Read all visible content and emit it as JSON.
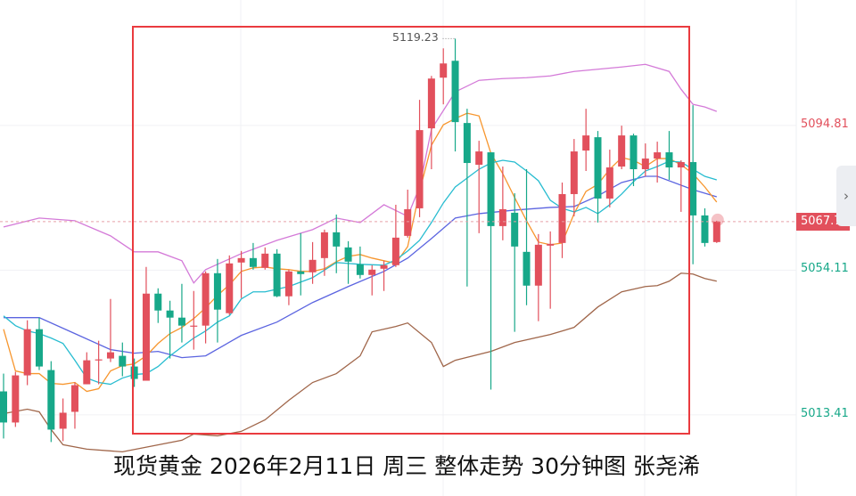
{
  "chart_data": {
    "type": "candlestick",
    "title": "",
    "candle_format": [
      "open",
      "high",
      "low",
      "close"
    ],
    "up_color": "#e2505c",
    "down_color": "#17a889",
    "y_axis_ticks": [
      "5094.81",
      "5054.11",
      "5013.41"
    ],
    "y_axis_tick_values": [
      5094.81,
      5054.11,
      5013.41
    ],
    "y_axis_tick_colors": [
      "up",
      "down",
      "down"
    ],
    "last_price": "5067.75",
    "max_label": "5119.23",
    "grid": true,
    "candles": [
      [
        5020,
        5025,
        5006.75,
        5011.25
      ],
      [
        5011.25,
        5025.5,
        5010,
        5024.5
      ],
      [
        5024.5,
        5040,
        5021.75,
        5037.5
      ],
      [
        5037.5,
        5040.75,
        5026,
        5027
      ],
      [
        5026,
        5028.5,
        5005.75,
        5009.25
      ],
      [
        5009.5,
        5018,
        5006,
        5014
      ],
      [
        5014.25,
        5022.5,
        5009.5,
        5021.75
      ],
      [
        5022,
        5031,
        5022,
        5028.75
      ],
      [
        5028.75,
        5034.25,
        5022,
        5029
      ],
      [
        5029.25,
        5046,
        5028.25,
        5031
      ],
      [
        5030,
        5033.75,
        5024.25,
        5027
      ],
      [
        5027,
        5029.25,
        5021.25,
        5023.5
      ],
      [
        5023,
        5055,
        5023,
        5047.5
      ],
      [
        5047.5,
        5049,
        5039.25,
        5042.75
      ],
      [
        5042.75,
        5045.5,
        5029.25,
        5040.75
      ],
      [
        5040.75,
        5050.25,
        5033.75,
        5038.5
      ],
      [
        5038.25,
        5048.25,
        5031.75,
        5038.5
      ],
      [
        5038.5,
        5053.75,
        5033.5,
        5053.25
      ],
      [
        5053.25,
        5057.25,
        5033.75,
        5043
      ],
      [
        5042,
        5058.25,
        5041.5,
        5056
      ],
      [
        5056.25,
        5059.5,
        5046.25,
        5057.5
      ],
      [
        5057.5,
        5061.75,
        5054.25,
        5055
      ],
      [
        5054.75,
        5060.5,
        5054.25,
        5058.75
      ],
      [
        5058.75,
        5060,
        5046.5,
        5046.75
      ],
      [
        5046.75,
        5054.25,
        5044.25,
        5053.75
      ],
      [
        5053.75,
        5064.5,
        5047,
        5053
      ],
      [
        5053.5,
        5062,
        5050.25,
        5057
      ],
      [
        5057.5,
        5065.5,
        5052.5,
        5064.75
      ],
      [
        5064.75,
        5069.75,
        5053.25,
        5060.75
      ],
      [
        5060.5,
        5062.25,
        5050.25,
        5056.5
      ],
      [
        5055.75,
        5060.75,
        5051.75,
        5052.75
      ],
      [
        5052.75,
        5055.5,
        5047,
        5054.25
      ],
      [
        5054.5,
        5056.75,
        5048.25,
        5055.5
      ],
      [
        5055.5,
        5072.5,
        5055,
        5063.25
      ],
      [
        5063.75,
        5076.75,
        5063.25,
        5071.25
      ],
      [
        5071.5,
        5102,
        5069,
        5093.5
      ],
      [
        5094,
        5108.75,
        5082.5,
        5108
      ],
      [
        5108.25,
        5116.5,
        5100.75,
        5112.25
      ],
      [
        5113,
        5119.23,
        5087.5,
        5095.75
      ],
      [
        5095.5,
        5099.5,
        5049.5,
        5084.25
      ],
      [
        5083.75,
        5090.5,
        5064.5,
        5087.5
      ],
      [
        5087.25,
        5087.25,
        5020.5,
        5066.5
      ],
      [
        5066.5,
        5083.25,
        5062.5,
        5071.25
      ],
      [
        5070.25,
        5075.75,
        5036.75,
        5060.75
      ],
      [
        5059.25,
        5082.5,
        5044.25,
        5049.75
      ],
      [
        5049.75,
        5064.25,
        5039.75,
        5061.25
      ],
      [
        5061,
        5065,
        5043.25,
        5061.5
      ],
      [
        5061.75,
        5078.75,
        5057.5,
        5075.5
      ],
      [
        5075.5,
        5091,
        5069.25,
        5087.5
      ],
      [
        5087.75,
        5099.5,
        5082,
        5092
      ],
      [
        5091.5,
        5093.25,
        5067.5,
        5074.25
      ],
      [
        5074.25,
        5088,
        5071.75,
        5083
      ],
      [
        5083.25,
        5094.75,
        5082.5,
        5092
      ],
      [
        5092,
        5092.5,
        5077.75,
        5082.5
      ],
      [
        5082.5,
        5089.75,
        5080.5,
        5085.5
      ],
      [
        5085.5,
        5090.25,
        5078.75,
        5087.25
      ],
      [
        5087.25,
        5093.25,
        5079.5,
        5083
      ],
      [
        5083,
        5085,
        5070.5,
        5084.5
      ],
      [
        5084.5,
        5100.5,
        5055.75,
        5069.5
      ],
      [
        5069.5,
        5071.5,
        5060.75,
        5061.75
      ],
      [
        5062,
        5068,
        5061.75,
        5067.75
      ]
    ],
    "indicator_lines": [
      {
        "color": "#d47ad8",
        "points": [
          [
            0,
            5066.25
          ],
          [
            3,
            5068.75
          ],
          [
            6,
            5068
          ],
          [
            9,
            5063.75
          ],
          [
            11,
            5059.25
          ],
          [
            13,
            5059.25
          ],
          [
            15,
            5056.75
          ],
          [
            16,
            5050.5
          ],
          [
            17,
            5054.25
          ],
          [
            20,
            5058.75
          ],
          [
            23,
            5062.5
          ],
          [
            26,
            5065.5
          ],
          [
            28,
            5068.75
          ],
          [
            30,
            5067.5
          ],
          [
            32,
            5072.5
          ],
          [
            34,
            5069.25
          ],
          [
            35,
            5077.5
          ],
          [
            36,
            5093.75
          ],
          [
            38,
            5104.25
          ],
          [
            40,
            5107.5
          ],
          [
            42,
            5108
          ],
          [
            44,
            5108.25
          ],
          [
            46,
            5108.75
          ],
          [
            48,
            5110
          ],
          [
            52,
            5111.25
          ],
          [
            54,
            5112
          ],
          [
            56,
            5110
          ],
          [
            57,
            5105
          ],
          [
            58,
            5100.75
          ],
          [
            59,
            5100
          ],
          [
            60,
            5098.75
          ]
        ]
      },
      {
        "color": "#5b64e0",
        "points": [
          [
            0,
            5040.75
          ],
          [
            3,
            5040.75
          ],
          [
            6,
            5036.25
          ],
          [
            9,
            5031.75
          ],
          [
            11,
            5030.75
          ],
          [
            13,
            5031.25
          ],
          [
            15,
            5029.5
          ],
          [
            17,
            5030
          ],
          [
            20,
            5035.75
          ],
          [
            23,
            5039.5
          ],
          [
            26,
            5045
          ],
          [
            29,
            5049.5
          ],
          [
            32,
            5053.75
          ],
          [
            34,
            5057.5
          ],
          [
            36,
            5063
          ],
          [
            38,
            5068.75
          ],
          [
            40,
            5070
          ],
          [
            43,
            5071
          ],
          [
            46,
            5071.75
          ],
          [
            48,
            5072
          ],
          [
            50,
            5075
          ],
          [
            52,
            5078.75
          ],
          [
            54,
            5080.5
          ],
          [
            55,
            5080.5
          ],
          [
            57,
            5078
          ],
          [
            58,
            5076.75
          ],
          [
            60,
            5074.75
          ]
        ]
      },
      {
        "color": "#a0664a",
        "points": [
          [
            0,
            5013.75
          ],
          [
            2,
            5015
          ],
          [
            3,
            5014.25
          ],
          [
            4,
            5009.25
          ],
          [
            5,
            5005
          ],
          [
            7,
            5003.75
          ],
          [
            10,
            5003
          ],
          [
            15,
            5006.25
          ],
          [
            16,
            5008
          ],
          [
            18,
            5007.5
          ],
          [
            20,
            5008.75
          ],
          [
            22,
            5012
          ],
          [
            24,
            5017.5
          ],
          [
            26,
            5022.5
          ],
          [
            28,
            5025
          ],
          [
            30,
            5030
          ],
          [
            31,
            5036.75
          ],
          [
            33,
            5038.25
          ],
          [
            34,
            5039.25
          ],
          [
            36,
            5033.75
          ],
          [
            37,
            5027
          ],
          [
            38,
            5028.75
          ],
          [
            41,
            5031.25
          ],
          [
            43,
            5033.75
          ],
          [
            46,
            5036
          ],
          [
            48,
            5038
          ],
          [
            50,
            5043.75
          ],
          [
            52,
            5048
          ],
          [
            54,
            5049.5
          ],
          [
            55,
            5049.75
          ],
          [
            56,
            5051
          ],
          [
            57,
            5053.25
          ],
          [
            58,
            5053
          ],
          [
            59,
            5051.75
          ],
          [
            60,
            5051
          ]
        ]
      },
      {
        "color": "#f7962e",
        "points": [
          [
            0,
            5037.5
          ],
          [
            1,
            5025.75
          ],
          [
            2,
            5025
          ],
          [
            3,
            5025
          ],
          [
            4,
            5022.25
          ],
          [
            5,
            5022
          ],
          [
            6,
            5022.5
          ],
          [
            7,
            5020
          ],
          [
            8,
            5020.75
          ],
          [
            9,
            5025.75
          ],
          [
            10,
            5027.25
          ],
          [
            11,
            5027.75
          ],
          [
            12,
            5030
          ],
          [
            13,
            5033.5
          ],
          [
            14,
            5036.25
          ],
          [
            15,
            5038
          ],
          [
            16,
            5040.5
          ],
          [
            17,
            5043.5
          ],
          [
            18,
            5047
          ],
          [
            19,
            5050
          ],
          [
            20,
            5053.75
          ],
          [
            21,
            5054.75
          ],
          [
            22,
            5055
          ],
          [
            23,
            5054.5
          ],
          [
            24,
            5054.25
          ],
          [
            25,
            5053.75
          ],
          [
            26,
            5053.75
          ],
          [
            27,
            5054.5
          ],
          [
            28,
            5056.5
          ],
          [
            29,
            5058
          ],
          [
            30,
            5058.5
          ],
          [
            31,
            5057.5
          ],
          [
            32,
            5056.75
          ],
          [
            33,
            5056
          ],
          [
            34,
            5060.75
          ],
          [
            35,
            5076.25
          ],
          [
            36,
            5089.25
          ],
          [
            37,
            5095
          ],
          [
            38,
            5096.75
          ],
          [
            39,
            5098.25
          ],
          [
            40,
            5097.5
          ],
          [
            41,
            5087
          ],
          [
            42,
            5081.25
          ],
          [
            43,
            5074.5
          ],
          [
            44,
            5068
          ],
          [
            45,
            5062
          ],
          [
            46,
            5061.25
          ],
          [
            47,
            5061.75
          ],
          [
            48,
            5070
          ],
          [
            49,
            5076.25
          ],
          [
            50,
            5078.25
          ],
          [
            51,
            5082.5
          ],
          [
            52,
            5085.75
          ],
          [
            53,
            5085
          ],
          [
            54,
            5083.25
          ],
          [
            55,
            5085.5
          ],
          [
            56,
            5085.5
          ],
          [
            57,
            5083.75
          ],
          [
            58,
            5081.25
          ],
          [
            59,
            5077.5
          ],
          [
            60,
            5073.25
          ]
        ]
      },
      {
        "color": "#27bcd0",
        "points": [
          [
            0,
            5041.25
          ],
          [
            1,
            5038.5
          ],
          [
            2,
            5037
          ],
          [
            3,
            5036.25
          ],
          [
            4,
            5035
          ],
          [
            5,
            5033.5
          ],
          [
            6,
            5028.75
          ],
          [
            7,
            5023.75
          ],
          [
            8,
            5022.5
          ],
          [
            9,
            5022
          ],
          [
            10,
            5023.75
          ],
          [
            11,
            5024.75
          ],
          [
            12,
            5025
          ],
          [
            13,
            5027
          ],
          [
            14,
            5030
          ],
          [
            15,
            5032.5
          ],
          [
            16,
            5035
          ],
          [
            17,
            5037
          ],
          [
            18,
            5039.5
          ],
          [
            19,
            5041.25
          ],
          [
            20,
            5046
          ],
          [
            21,
            5048
          ],
          [
            22,
            5048
          ],
          [
            23,
            5048.75
          ],
          [
            24,
            5049.5
          ],
          [
            26,
            5052
          ],
          [
            28,
            5056.25
          ],
          [
            30,
            5055.75
          ],
          [
            32,
            5055.5
          ],
          [
            33,
            5057
          ],
          [
            34,
            5059.5
          ],
          [
            35,
            5062.5
          ],
          [
            36,
            5067.5
          ],
          [
            37,
            5073
          ],
          [
            38,
            5077.5
          ],
          [
            39,
            5080
          ],
          [
            40,
            5082.5
          ],
          [
            41,
            5084.25
          ],
          [
            42,
            5085
          ],
          [
            43,
            5084.5
          ],
          [
            44,
            5082
          ],
          [
            45,
            5079.25
          ],
          [
            46,
            5073.75
          ],
          [
            47,
            5071.5
          ],
          [
            48,
            5070.5
          ],
          [
            49,
            5071.75
          ],
          [
            50,
            5070
          ],
          [
            51,
            5072.5
          ],
          [
            52,
            5075.5
          ],
          [
            53,
            5079
          ],
          [
            54,
            5082
          ],
          [
            55,
            5083.25
          ],
          [
            56,
            5084.75
          ],
          [
            57,
            5084.5
          ],
          [
            58,
            5082.5
          ],
          [
            59,
            5080.5
          ],
          [
            60,
            5079.5
          ]
        ]
      }
    ]
  },
  "caption": "现货黄金 2026年2月11日 周三 整体走势 30分钟图 张尧浠",
  "scroll_button": {
    "icon": "chevron-right-icon",
    "glyph": "›"
  },
  "highlight_color": "#ea3b3f"
}
